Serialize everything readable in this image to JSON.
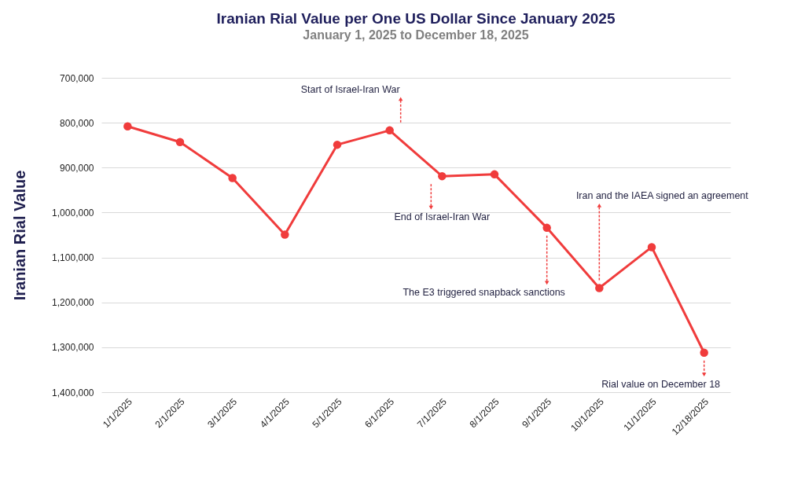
{
  "chart_data": {
    "type": "line",
    "title": "Iranian Rial Value per One US Dollar Since January 2025",
    "subtitle": "January 1, 2025 to December 18, 2025",
    "ylabel": "Iranian Rial Value",
    "categories": [
      "1/1/2025",
      "2/1/2025",
      "3/1/2025",
      "4/1/2025",
      "5/1/2025",
      "6/1/2025",
      "7/1/2025",
      "8/1/2025",
      "9/1/2025",
      "10/1/2025",
      "11/1/2025",
      "12/18/2025"
    ],
    "series": [
      {
        "color": "#f03c3c",
        "values": [
          808000,
          843000,
          923000,
          1049000,
          849000,
          817000,
          919000,
          915000,
          1034000,
          1168000,
          1077000,
          1312000
        ]
      }
    ],
    "ylim": [
      1400000,
      700000
    ],
    "yticks": [
      {
        "value": 700000,
        "label": "700,000"
      },
      {
        "value": 800000,
        "label": "800,000"
      },
      {
        "value": 900000,
        "label": "900,000"
      },
      {
        "value": 1000000,
        "label": "1,000,000"
      },
      {
        "value": 1100000,
        "label": "1,100,000"
      },
      {
        "value": 1200000,
        "label": "1,200,000"
      },
      {
        "value": 1300000,
        "label": "1,300,000"
      },
      {
        "value": 1400000,
        "label": "1,400,000"
      }
    ],
    "grid": "y",
    "marker": "circle",
    "line_style": "solid",
    "annotations": [
      "Start of Israel-Iran War",
      "End of Israel-Iran War",
      "Iran and the IAEA signed an agreement",
      "The E3 triggered snapback sanctions",
      "Rial value on December 18"
    ]
  }
}
